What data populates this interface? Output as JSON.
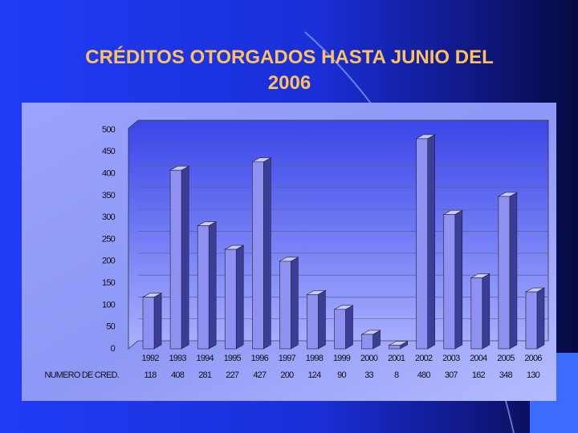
{
  "chart_data": {
    "type": "bar",
    "title": "CRÉDITOS OTORGADOS HASTA JUNIO DEL 2006",
    "categories": [
      "1992",
      "1993",
      "1994",
      "1995",
      "1996",
      "1997",
      "1998",
      "1999",
      "2000",
      "2001",
      "2002",
      "2003",
      "2004",
      "2005",
      "2006"
    ],
    "series": [
      {
        "name": "NUMERO DE CRED.",
        "color": "#8e90f2",
        "values": [
          118,
          408,
          281,
          227,
          427,
          200,
          124,
          90,
          33,
          8,
          480,
          307,
          162,
          348,
          130
        ]
      }
    ],
    "ylim": [
      0,
      500
    ],
    "yticks": [
      0,
      50,
      100,
      150,
      200,
      250,
      300,
      350,
      400,
      450,
      500
    ],
    "grid": true
  }
}
